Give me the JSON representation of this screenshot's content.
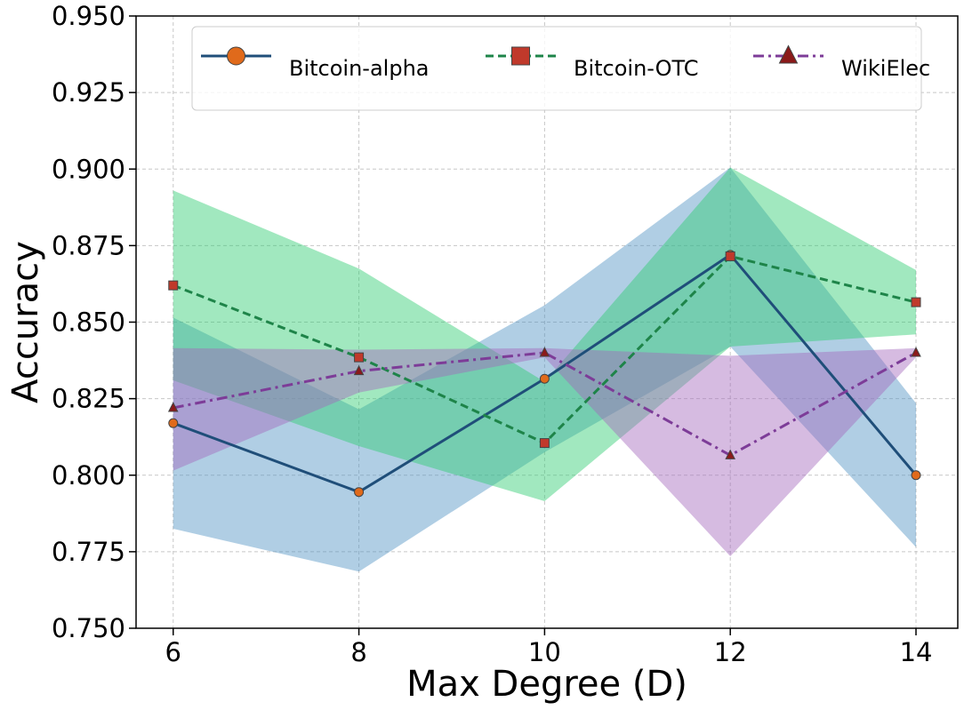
{
  "chart_data": {
    "type": "line",
    "title": "",
    "xlabel": "Max Degree (D)",
    "ylabel": "Accuracy",
    "x": [
      6,
      8,
      10,
      12,
      14
    ],
    "x_ticks": [
      "6",
      "8",
      "10",
      "12",
      "14"
    ],
    "xlim": [
      5.6,
      14.45
    ],
    "ylim": [
      0.75,
      0.95
    ],
    "y_ticks": [
      "0.750",
      "0.775",
      "0.800",
      "0.825",
      "0.850",
      "0.875",
      "0.900",
      "0.925",
      "0.950"
    ],
    "y_tick_values": [
      0.75,
      0.775,
      0.8,
      0.825,
      0.85,
      0.875,
      0.9,
      0.925,
      0.95
    ],
    "grid": true,
    "legend_position": "top",
    "series": [
      {
        "name": "Bitcoin-alpha",
        "values": [
          0.817,
          0.7945,
          0.8315,
          0.872,
          0.8
        ],
        "upper": [
          0.8515,
          0.8215,
          0.8555,
          0.9005,
          0.8235
        ],
        "lower": [
          0.7825,
          0.7685,
          0.8075,
          0.842,
          0.7765
        ],
        "line_color": "#1f4e79",
        "marker_color": "#e06a1b",
        "band_color": "#4f93c4",
        "dash": "solid",
        "marker": "circle"
      },
      {
        "name": "Bitcoin-OTC",
        "values": [
          0.862,
          0.8385,
          0.8105,
          0.8715,
          0.8565
        ],
        "upper": [
          0.893,
          0.8675,
          0.8305,
          0.9005,
          0.867
        ],
        "lower": [
          0.831,
          0.8095,
          0.7915,
          0.842,
          0.846
        ],
        "line_color": "#1e8449",
        "marker_color": "#c0392b",
        "band_color": "#2ecc71",
        "dash": "dashed",
        "marker": "square"
      },
      {
        "name": "WikiElec",
        "values": [
          0.822,
          0.834,
          0.84,
          0.8065,
          0.84
        ],
        "upper": [
          0.8415,
          0.841,
          0.8415,
          0.839,
          0.8415
        ],
        "lower": [
          0.8015,
          0.827,
          0.8385,
          0.7735,
          0.8385
        ],
        "line_color": "#7d3c98",
        "marker_color": "#8b1a1a",
        "band_color": "#a569bd",
        "dash": "dashdot",
        "marker": "triangle"
      }
    ]
  }
}
